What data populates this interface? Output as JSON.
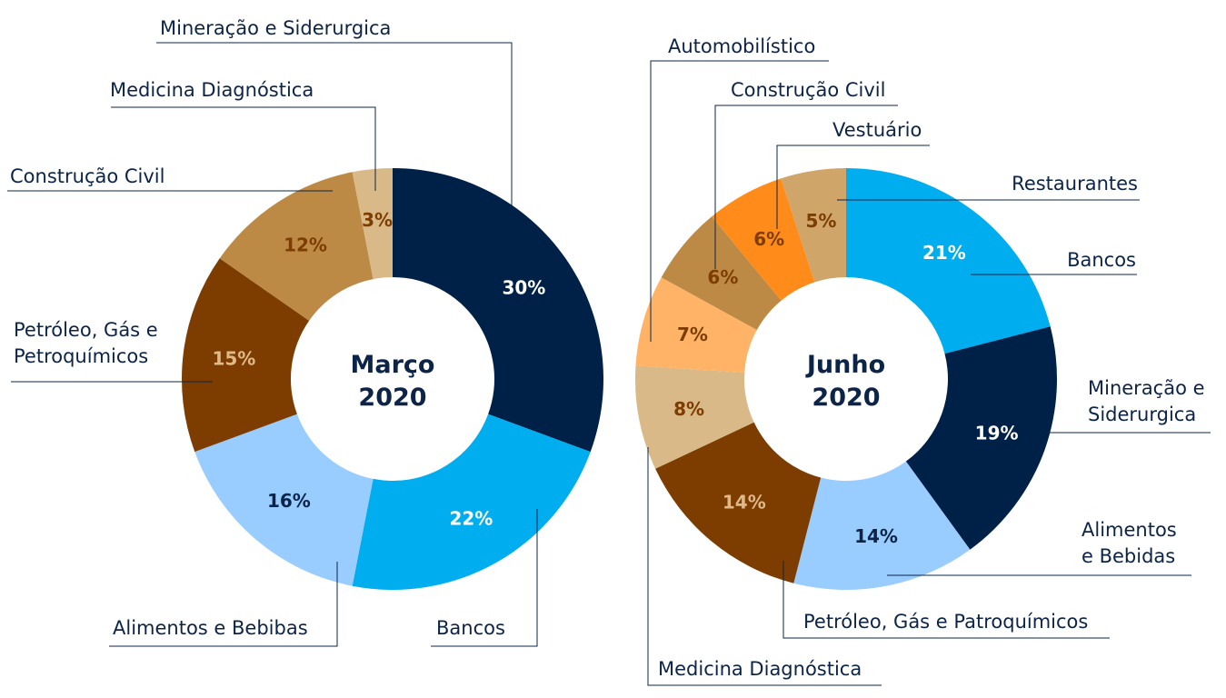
{
  "chart_data": [
    {
      "type": "pie",
      "donut": true,
      "center_label": [
        "Março",
        "2020"
      ],
      "slices": [
        {
          "name": "Mineração e Siderurgica",
          "label_lines": [
            "Mineração e Siderurgica"
          ],
          "value": 30,
          "value_label": "30%",
          "color": "#002147",
          "text_color": "#ffffff"
        },
        {
          "name": "Bancos",
          "label_lines": [
            "Bancos"
          ],
          "value": 22,
          "value_label": "22%",
          "color": "#00adee",
          "text_color": "#ffffff"
        },
        {
          "name": "Alimentos e Bebibas",
          "label_lines": [
            "Alimentos e Bebibas"
          ],
          "value": 16,
          "value_label": "16%",
          "color": "#99ccff",
          "text_color": "#0b2447"
        },
        {
          "name": "Petróleo, Gás e Petroquímicos",
          "label_lines": [
            "Petróleo, Gás e",
            "Petroquímicos"
          ],
          "value": 15,
          "value_label": "15%",
          "color": "#7d3d00",
          "text_color": "#e0b98a"
        },
        {
          "name": "Construção Civil",
          "label_lines": [
            "Construção Civil"
          ],
          "value": 12,
          "value_label": "12%",
          "color": "#bd8a45",
          "text_color": "#7d3d00"
        },
        {
          "name": "Medicina Diagnóstica",
          "label_lines": [
            "Medicina Diagnóstica"
          ],
          "value": 3,
          "value_label": "3%",
          "color": "#d9b988",
          "text_color": "#7d3d00"
        }
      ]
    },
    {
      "type": "pie",
      "donut": true,
      "center_label": [
        "Junho",
        "2020"
      ],
      "slices": [
        {
          "name": "Bancos",
          "label_lines": [
            "Bancos"
          ],
          "value": 21,
          "value_label": "21%",
          "color": "#00adee",
          "text_color": "#ffffff"
        },
        {
          "name": "Mineração e Siderurgica",
          "label_lines": [
            "Mineração e",
            "Siderurgica"
          ],
          "value": 19,
          "value_label": "19%",
          "color": "#002147",
          "text_color": "#ffffff"
        },
        {
          "name": "Alimentos e Bebidas",
          "label_lines": [
            "Alimentos",
            "e Bebidas"
          ],
          "value": 14,
          "value_label": "14%",
          "color": "#99ccff",
          "text_color": "#0b2447"
        },
        {
          "name": "Petróleo, Gás e Patroquímicos",
          "label_lines": [
            "Petróleo, Gás e Patroquímicos"
          ],
          "value": 14,
          "value_label": "14%",
          "color": "#7d3d00",
          "text_color": "#e0b98a"
        },
        {
          "name": "Medicina Diagnóstica",
          "label_lines": [
            "Medicina Diagnóstica"
          ],
          "value": 8,
          "value_label": "8%",
          "color": "#d9b988",
          "text_color": "#7d3d00"
        },
        {
          "name": "Automobilístico",
          "label_lines": [
            "Automobilístico"
          ],
          "value": 7,
          "value_label": "7%",
          "color": "#ffb366",
          "text_color": "#7d3d00"
        },
        {
          "name": "Construção Civil",
          "label_lines": [
            "Construção Civil"
          ],
          "value": 6,
          "value_label": "6%",
          "color": "#bd8a45",
          "text_color": "#7d3d00"
        },
        {
          "name": "Vestuário",
          "label_lines": [
            "Vestuário"
          ],
          "value": 6,
          "value_label": "6%",
          "color": "#ff8c1a",
          "text_color": "#7d3d00"
        },
        {
          "name": "Restaurantes",
          "label_lines": [
            "Restaurantes"
          ],
          "value": 5,
          "value_label": "5%",
          "color": "#cfa56a",
          "text_color": "#7d3d00"
        }
      ]
    }
  ]
}
